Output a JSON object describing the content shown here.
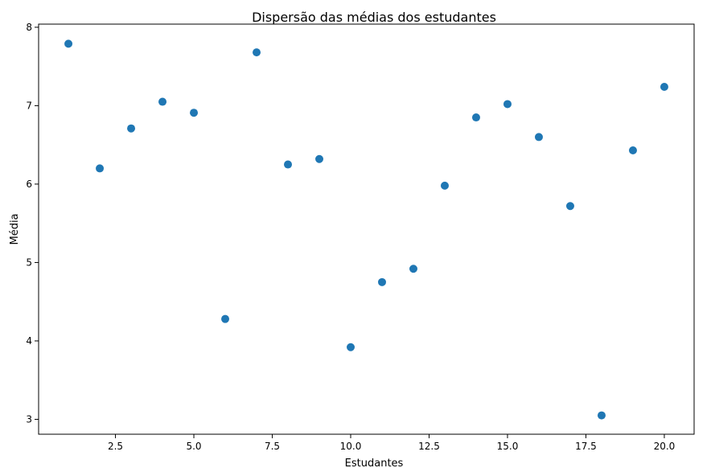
{
  "chart_data": {
    "type": "scatter",
    "title": "Dispersão das médias dos estudantes",
    "xlabel": "Estudantes",
    "ylabel": "Média",
    "xlim": [
      0.05,
      20.95
    ],
    "ylim": [
      2.81,
      8.04
    ],
    "xticks": [
      2.5,
      5.0,
      7.5,
      10.0,
      12.5,
      15.0,
      17.5,
      20.0
    ],
    "xtick_labels": [
      "2.5",
      "5.0",
      "7.5",
      "10.0",
      "12.5",
      "15.0",
      "17.5",
      "20.0"
    ],
    "yticks": [
      3,
      4,
      5,
      6,
      7,
      8
    ],
    "ytick_labels": [
      "3",
      "4",
      "5",
      "6",
      "7",
      "8"
    ],
    "grid": false,
    "marker_color": "#1f77b4",
    "series": [
      {
        "points": [
          {
            "x": 1,
            "y": 7.79
          },
          {
            "x": 2,
            "y": 6.2
          },
          {
            "x": 3,
            "y": 6.71
          },
          {
            "x": 4,
            "y": 7.05
          },
          {
            "x": 5,
            "y": 6.91
          },
          {
            "x": 6,
            "y": 4.28
          },
          {
            "x": 7,
            "y": 7.68
          },
          {
            "x": 8,
            "y": 6.25
          },
          {
            "x": 9,
            "y": 6.32
          },
          {
            "x": 10,
            "y": 3.92
          },
          {
            "x": 11,
            "y": 4.75
          },
          {
            "x": 12,
            "y": 4.92
          },
          {
            "x": 13,
            "y": 5.98
          },
          {
            "x": 14,
            "y": 6.85
          },
          {
            "x": 15,
            "y": 7.02
          },
          {
            "x": 16,
            "y": 6.6
          },
          {
            "x": 17,
            "y": 5.72
          },
          {
            "x": 18,
            "y": 3.05
          },
          {
            "x": 19,
            "y": 6.43
          },
          {
            "x": 20,
            "y": 7.24
          }
        ]
      }
    ]
  }
}
